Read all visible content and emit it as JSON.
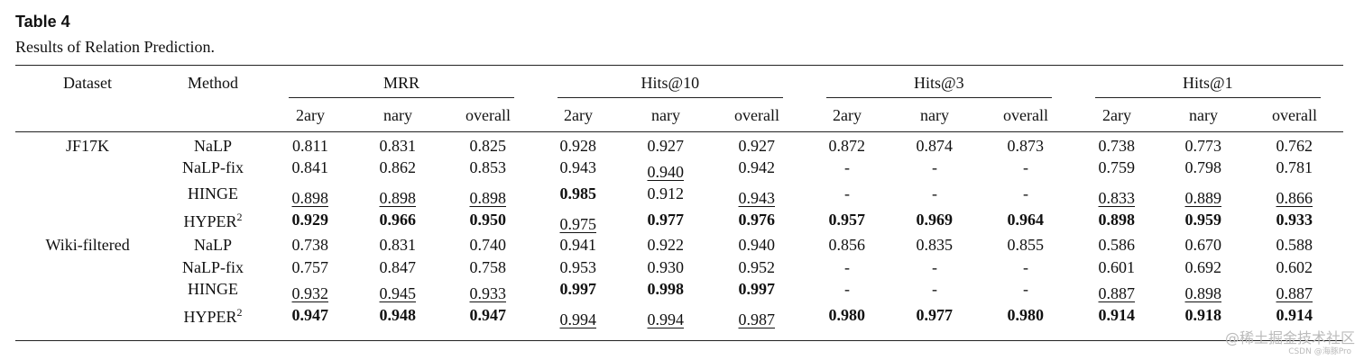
{
  "table_title": "Table 4",
  "caption": "Results of Relation Prediction.",
  "header": {
    "dataset": "Dataset",
    "method": "Method",
    "groups": [
      "MRR",
      "Hits@10",
      "Hits@3",
      "Hits@1"
    ],
    "subcols": [
      "2ary",
      "nary",
      "overall"
    ]
  },
  "rows": [
    {
      "dataset": "JF17K",
      "method": "NaLP",
      "sup": "",
      "cells": [
        {
          "v": "0.811",
          "s": ""
        },
        {
          "v": "0.831",
          "s": ""
        },
        {
          "v": "0.825",
          "s": ""
        },
        {
          "v": "0.928",
          "s": ""
        },
        {
          "v": "0.927",
          "s": ""
        },
        {
          "v": "0.927",
          "s": ""
        },
        {
          "v": "0.872",
          "s": ""
        },
        {
          "v": "0.874",
          "s": ""
        },
        {
          "v": "0.873",
          "s": ""
        },
        {
          "v": "0.738",
          "s": ""
        },
        {
          "v": "0.773",
          "s": ""
        },
        {
          "v": "0.762",
          "s": ""
        }
      ]
    },
    {
      "dataset": "",
      "method": "NaLP-fix",
      "sup": "",
      "cells": [
        {
          "v": "0.841",
          "s": ""
        },
        {
          "v": "0.862",
          "s": ""
        },
        {
          "v": "0.853",
          "s": ""
        },
        {
          "v": "0.943",
          "s": ""
        },
        {
          "v": "0.940",
          "s": "u"
        },
        {
          "v": "0.942",
          "s": ""
        },
        {
          "v": "-",
          "s": ""
        },
        {
          "v": "-",
          "s": ""
        },
        {
          "v": "-",
          "s": ""
        },
        {
          "v": "0.759",
          "s": ""
        },
        {
          "v": "0.798",
          "s": ""
        },
        {
          "v": "0.781",
          "s": ""
        }
      ]
    },
    {
      "dataset": "",
      "method": "HINGE",
      "sup": "",
      "cells": [
        {
          "v": "0.898",
          "s": "u"
        },
        {
          "v": "0.898",
          "s": "u"
        },
        {
          "v": "0.898",
          "s": "u"
        },
        {
          "v": "0.985",
          "s": "b"
        },
        {
          "v": "0.912",
          "s": ""
        },
        {
          "v": "0.943",
          "s": "u"
        },
        {
          "v": "-",
          "s": ""
        },
        {
          "v": "-",
          "s": ""
        },
        {
          "v": "-",
          "s": ""
        },
        {
          "v": "0.833",
          "s": "u"
        },
        {
          "v": "0.889",
          "s": "u"
        },
        {
          "v": "0.866",
          "s": "u"
        }
      ]
    },
    {
      "dataset": "",
      "method": "HYPER",
      "sup": "2",
      "cells": [
        {
          "v": "0.929",
          "s": "b"
        },
        {
          "v": "0.966",
          "s": "b"
        },
        {
          "v": "0.950",
          "s": "b"
        },
        {
          "v": "0.975",
          "s": "u"
        },
        {
          "v": "0.977",
          "s": "b"
        },
        {
          "v": "0.976",
          "s": "b"
        },
        {
          "v": "0.957",
          "s": "b"
        },
        {
          "v": "0.969",
          "s": "b"
        },
        {
          "v": "0.964",
          "s": "b"
        },
        {
          "v": "0.898",
          "s": "b"
        },
        {
          "v": "0.959",
          "s": "b"
        },
        {
          "v": "0.933",
          "s": "b"
        }
      ]
    },
    {
      "dataset": "Wiki-filtered",
      "method": "NaLP",
      "sup": "",
      "cells": [
        {
          "v": "0.738",
          "s": ""
        },
        {
          "v": "0.831",
          "s": ""
        },
        {
          "v": "0.740",
          "s": ""
        },
        {
          "v": "0.941",
          "s": ""
        },
        {
          "v": "0.922",
          "s": ""
        },
        {
          "v": "0.940",
          "s": ""
        },
        {
          "v": "0.856",
          "s": ""
        },
        {
          "v": "0.835",
          "s": ""
        },
        {
          "v": "0.855",
          "s": ""
        },
        {
          "v": "0.586",
          "s": ""
        },
        {
          "v": "0.670",
          "s": ""
        },
        {
          "v": "0.588",
          "s": ""
        }
      ]
    },
    {
      "dataset": "",
      "method": "NaLP-fix",
      "sup": "",
      "cells": [
        {
          "v": "0.757",
          "s": ""
        },
        {
          "v": "0.847",
          "s": ""
        },
        {
          "v": "0.758",
          "s": ""
        },
        {
          "v": "0.953",
          "s": ""
        },
        {
          "v": "0.930",
          "s": ""
        },
        {
          "v": "0.952",
          "s": ""
        },
        {
          "v": "-",
          "s": ""
        },
        {
          "v": "-",
          "s": ""
        },
        {
          "v": "-",
          "s": ""
        },
        {
          "v": "0.601",
          "s": ""
        },
        {
          "v": "0.692",
          "s": ""
        },
        {
          "v": "0.602",
          "s": ""
        }
      ]
    },
    {
      "dataset": "",
      "method": "HINGE",
      "sup": "",
      "cells": [
        {
          "v": "0.932",
          "s": "u"
        },
        {
          "v": "0.945",
          "s": "u"
        },
        {
          "v": "0.933",
          "s": "u"
        },
        {
          "v": "0.997",
          "s": "b"
        },
        {
          "v": "0.998",
          "s": "b"
        },
        {
          "v": "0.997",
          "s": "b"
        },
        {
          "v": "-",
          "s": ""
        },
        {
          "v": "-",
          "s": ""
        },
        {
          "v": "-",
          "s": ""
        },
        {
          "v": "0.887",
          "s": "u"
        },
        {
          "v": "0.898",
          "s": "u"
        },
        {
          "v": "0.887",
          "s": "u"
        }
      ]
    },
    {
      "dataset": "",
      "method": "HYPER",
      "sup": "2",
      "cells": [
        {
          "v": "0.947",
          "s": "b"
        },
        {
          "v": "0.948",
          "s": "b"
        },
        {
          "v": "0.947",
          "s": "b"
        },
        {
          "v": "0.994",
          "s": "u"
        },
        {
          "v": "0.994",
          "s": "u"
        },
        {
          "v": "0.987",
          "s": "u"
        },
        {
          "v": "0.980",
          "s": "b"
        },
        {
          "v": "0.977",
          "s": "b"
        },
        {
          "v": "0.980",
          "s": "b"
        },
        {
          "v": "0.914",
          "s": "b"
        },
        {
          "v": "0.918",
          "s": "b"
        },
        {
          "v": "0.914",
          "s": "b"
        }
      ]
    }
  ],
  "watermark": "@稀土掘金技术社区",
  "watermark_sub": "CSDN @海豚Pro"
}
